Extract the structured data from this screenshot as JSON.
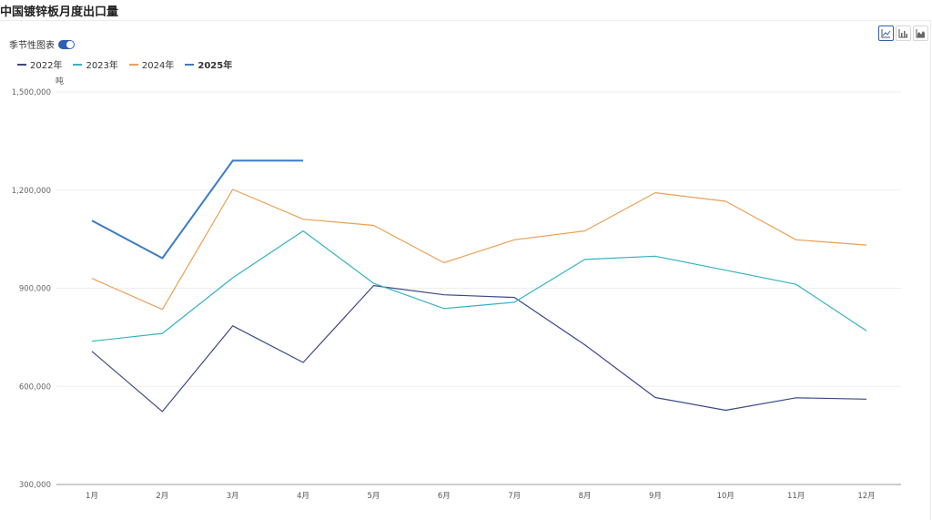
{
  "title": "中国镀锌板月度出口量",
  "seasonal_toggle": {
    "label": "季节性图表",
    "on": true
  },
  "toolbar": {
    "icons": [
      "line-chart-icon",
      "bar-chart-icon",
      "area-chart-icon"
    ],
    "active": 0
  },
  "chart_data": {
    "type": "line",
    "title": "中国镀锌板月度出口量",
    "ylabel": "吨",
    "xlabel": "",
    "categories": [
      "1月",
      "2月",
      "3月",
      "4月",
      "5月",
      "6月",
      "7月",
      "8月",
      "9月",
      "10月",
      "11月",
      "12月"
    ],
    "ylim": [
      300000,
      1500000
    ],
    "yticks": [
      300000,
      600000,
      900000,
      1200000,
      1500000
    ],
    "ytick_labels": [
      "300,000",
      "600,000",
      "900,000",
      "1,200,000",
      "1,500,000"
    ],
    "grid": true,
    "legend": "top-left",
    "series": [
      {
        "name": "2022年",
        "color": "#3b4a86",
        "width": 1.2,
        "bold": false,
        "values": [
          707000,
          523000,
          785000,
          673000,
          908000,
          880000,
          872000,
          727000,
          566000,
          527000,
          565000,
          561000
        ]
      },
      {
        "name": "2023年",
        "color": "#35b2c4",
        "width": 1.2,
        "bold": false,
        "values": [
          738000,
          762000,
          932000,
          1075000,
          915000,
          838000,
          857000,
          988000,
          998000,
          955000,
          912000,
          770000
        ]
      },
      {
        "name": "2024年",
        "color": "#eaa055",
        "width": 1.2,
        "bold": false,
        "values": [
          930000,
          835000,
          1202000,
          1111000,
          1092000,
          978000,
          1048000,
          1075000,
          1192000,
          1166000,
          1048000,
          1032000
        ]
      },
      {
        "name": "2025年",
        "color": "#3a7cc4",
        "width": 2,
        "bold": true,
        "values": [
          1107000,
          992000,
          1290000,
          1290000,
          null,
          null,
          null,
          null,
          null,
          null,
          null,
          null
        ]
      }
    ]
  }
}
